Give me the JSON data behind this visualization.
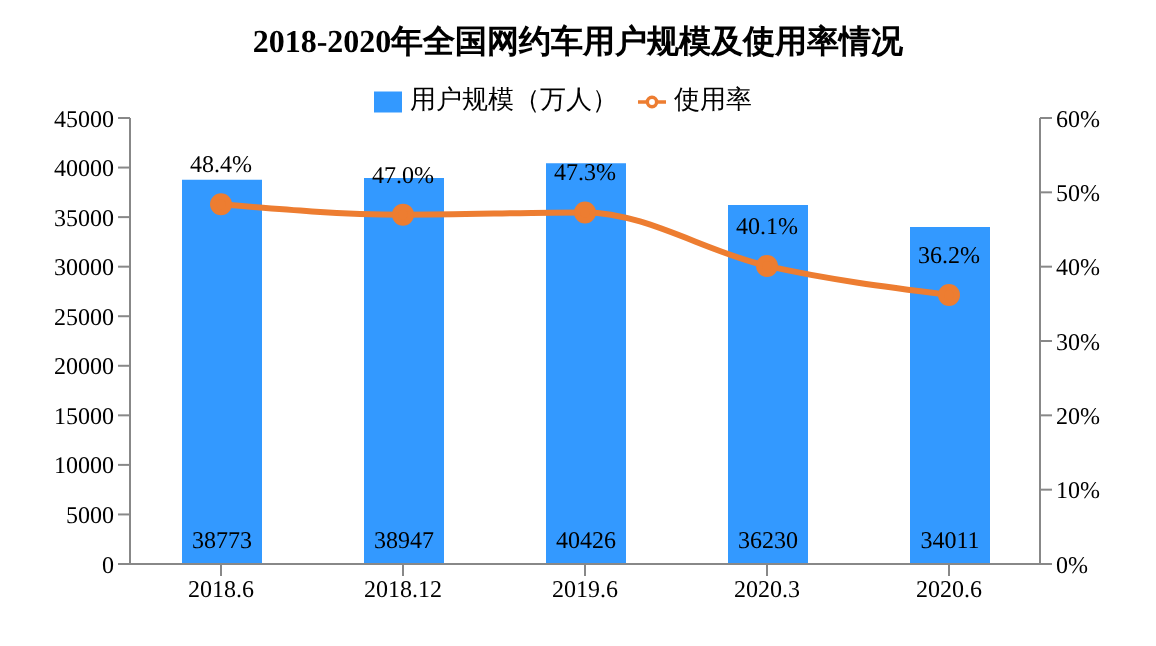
{
  "chart_data": {
    "type": "bar",
    "title": "2018-2020年全国网约车用户规模及使用率情况",
    "categories": [
      "2018.6",
      "2018.12",
      "2019.6",
      "2020.3",
      "2020.6"
    ],
    "series": [
      {
        "name": "用户规模（万人）",
        "color": "#3399ff",
        "values": [
          38773,
          38947,
          40426,
          36230,
          34011
        ],
        "value_labels": [
          "38773",
          "38947",
          "40426",
          "36230",
          "34011"
        ]
      },
      {
        "name": "使用率",
        "type": "line",
        "axis": "y2",
        "color": "#ed7d31",
        "values": [
          48.4,
          47.0,
          47.3,
          40.1,
          36.2
        ],
        "value_labels": [
          "48.4%",
          "47.0%",
          "47.3%",
          "40.1%",
          "36.2%"
        ]
      }
    ],
    "ylim": [
      0,
      45000
    ],
    "yticks": [
      0,
      5000,
      10000,
      15000,
      20000,
      25000,
      30000,
      35000,
      40000,
      45000
    ],
    "y2lim": [
      0,
      60
    ],
    "y2ticks": [
      {
        "value": 0,
        "label": "0%"
      },
      {
        "value": 10,
        "label": "10%"
      },
      {
        "value": 20,
        "label": "20%"
      },
      {
        "value": 30,
        "label": "30%"
      },
      {
        "value": 40,
        "label": "40%"
      },
      {
        "value": 50,
        "label": "50%"
      },
      {
        "value": 60,
        "label": "60%"
      }
    ],
    "legend": "top",
    "grid": false,
    "marker": "circle"
  }
}
